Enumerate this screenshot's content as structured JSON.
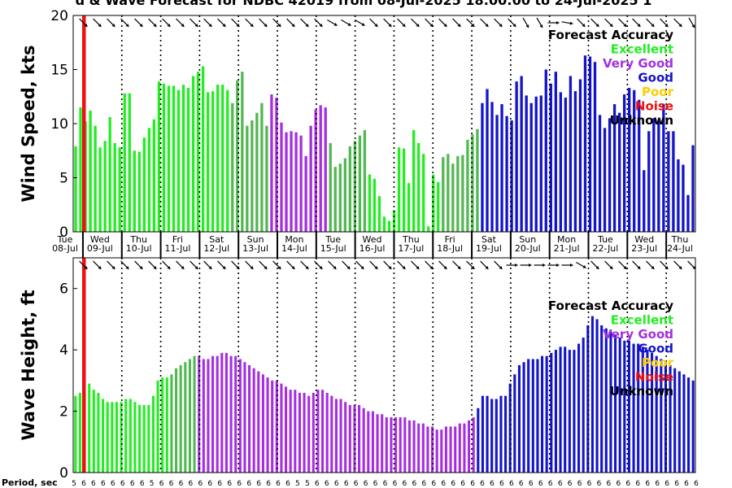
{
  "title": "d & Wave Forecast for NDBC 42019 from 08-Jul-2025 18:00:00 to 24-Jul-2025 1",
  "colors": {
    "Excellent": "#22ee22",
    "Mid": "#52b852",
    "Very Good": "#a52fe0",
    "Good": "#1414c8",
    "Poor": "#ffcc00",
    "Noise": "#ee1111",
    "Unknown": "#000000",
    "text": "#000000"
  },
  "legend": {
    "title": "Forecast Accuracy",
    "items": [
      {
        "label": "Excellent",
        "color": "#22ee22"
      },
      {
        "label": "Very Good",
        "color": "#a52fe0"
      },
      {
        "label": "Good",
        "color": "#1414c8"
      },
      {
        "label": "Poor",
        "color": "#ffcc00"
      },
      {
        "label": "Noise",
        "color": "#ee1111"
      },
      {
        "label": "Unknown",
        "color": "#000000"
      }
    ]
  },
  "day_labels": [
    {
      "day": "Tue",
      "date": "08-Jul"
    },
    {
      "day": "Wed",
      "date": "09-Jul"
    },
    {
      "day": "Thu",
      "date": "10-Jul"
    },
    {
      "day": "Fri",
      "date": "11-Jul"
    },
    {
      "day": "Sat",
      "date": "12-Jul"
    },
    {
      "day": "Sun",
      "date": "13-Jul"
    },
    {
      "day": "Mon",
      "date": "14-Jul"
    },
    {
      "day": "Tue",
      "date": "15-Jul"
    },
    {
      "day": "Wed",
      "date": "16-Jul"
    },
    {
      "day": "Thu",
      "date": "17-Jul"
    },
    {
      "day": "Fri",
      "date": "18-Jul"
    },
    {
      "day": "Sat",
      "date": "19-Jul"
    },
    {
      "day": "Sun",
      "date": "20-Jul"
    },
    {
      "day": "Mon",
      "date": "21-Jul"
    },
    {
      "day": "Tue",
      "date": "22-Jul"
    },
    {
      "day": "Wed",
      "date": "23-Jul"
    },
    {
      "day": "Thu",
      "date": "24-Jul"
    }
  ],
  "period_label": "Period, sec",
  "periods": [
    5,
    6,
    6,
    6,
    6,
    6,
    6,
    6,
    5,
    6,
    6,
    6,
    6,
    6,
    6,
    6,
    6,
    6,
    6,
    6,
    6,
    6,
    6,
    5,
    5,
    6,
    6,
    6,
    6,
    6,
    6,
    6,
    6,
    6,
    6,
    6,
    6,
    6,
    6,
    6,
    6,
    6,
    6,
    6,
    6,
    6,
    6,
    6,
    6,
    6,
    6,
    6,
    6,
    6,
    6,
    6,
    6,
    6,
    6,
    6,
    6,
    6,
    6,
    6,
    6
  ],
  "chart_data": [
    {
      "type": "bar",
      "name": "wind",
      "ylabel": "Wind Speed, kts",
      "ylim": [
        0,
        20
      ],
      "yticks": [
        0,
        5,
        10,
        15,
        20
      ],
      "grid": "vertical dotted day boundaries",
      "legend_position": "top-right",
      "values": [
        7.9,
        11.5,
        10.2,
        11.2,
        9.8,
        7.8,
        8.4,
        10.6,
        8.2,
        7.8,
        12.8,
        12.8,
        7.5,
        7.4,
        8.7,
        9.6,
        10.4,
        13.9,
        13.7,
        13.5,
        13.5,
        13.1,
        13.6,
        13.3,
        14.4,
        14.8,
        15.3,
        12.9,
        13.0,
        13.6,
        13.6,
        13.1,
        11.9,
        14.0,
        14.8,
        9.8,
        10.3,
        11.0,
        11.9,
        9.8,
        12.7,
        12.4,
        10.1,
        9.2,
        9.3,
        9.2,
        8.9,
        7.0,
        9.8,
        11.3,
        11.7,
        11.5,
        8.2,
        6.0,
        6.3,
        6.8,
        7.9,
        8.4,
        8.9,
        9.4,
        5.3,
        4.9,
        3.3,
        1.4,
        1.0,
        2.0,
        7.8,
        7.7,
        4.5,
        9.4,
        8.2,
        7.2,
        0.5,
        5.3,
        4.6,
        6.9,
        7.2,
        6.3,
        7.0,
        7.1,
        8.5,
        9.0,
        9.5,
        11.9,
        13.2,
        12.0,
        10.8,
        11.8,
        10.7,
        10.3,
        13.9,
        14.4,
        12.6,
        11.9,
        12.5,
        12.6,
        15.0,
        13.7,
        14.8,
        12.9,
        12.4,
        14.4,
        13.0,
        14.1,
        16.3,
        16.2,
        15.7,
        10.8,
        9.6,
        10.5,
        11.8,
        11.0,
        12.7,
        13.3,
        13.1,
        12.2,
        5.7,
        9.3,
        10.5,
        10.3,
        11.8,
        9.3,
        9.3,
        6.7,
        6.2,
        3.4,
        8.0
      ],
      "accuracy": [
        "E",
        "E",
        "E",
        "E",
        "E",
        "E",
        "E",
        "E",
        "E",
        "E",
        "E",
        "E",
        "E",
        "E",
        "E",
        "E",
        "E",
        "E",
        "E",
        "E",
        "E",
        "E",
        "E",
        "E",
        "E",
        "E",
        "E",
        "E",
        "E",
        "E",
        "E",
        "E",
        "M",
        "M",
        "M",
        "M",
        "M",
        "M",
        "M",
        "M",
        "V",
        "V",
        "V",
        "V",
        "V",
        "V",
        "V",
        "V",
        "V",
        "V",
        "V",
        "V",
        "M",
        "M",
        "M",
        "M",
        "M",
        "M",
        "M",
        "M",
        "E",
        "E",
        "E",
        "E",
        "E",
        "E",
        "E",
        "E",
        "E",
        "E",
        "E",
        "E",
        "E",
        "E",
        "E",
        "M",
        "M",
        "M",
        "M",
        "M",
        "M",
        "M",
        "M",
        "G",
        "G",
        "G",
        "G",
        "G",
        "G",
        "G",
        "G",
        "G",
        "G",
        "G",
        "G",
        "G",
        "G",
        "G",
        "G",
        "G",
        "G",
        "G",
        "G",
        "G",
        "G",
        "G",
        "G",
        "G",
        "G",
        "G",
        "G",
        "G",
        "G",
        "G",
        "G",
        "G",
        "G",
        "G",
        "G",
        "G",
        "G",
        "G",
        "G",
        "G",
        "G",
        "G",
        "G"
      ]
    },
    {
      "type": "bar",
      "name": "wave",
      "ylabel": "Wave Height, ft",
      "ylim": [
        0,
        7
      ],
      "yticks": [
        0,
        2,
        4,
        6
      ],
      "grid": "vertical dotted day boundaries",
      "legend_position": "top-right",
      "values": [
        2.5,
        2.6,
        2.6,
        2.9,
        2.7,
        2.6,
        2.4,
        2.3,
        2.3,
        2.3,
        2.3,
        2.4,
        2.4,
        2.3,
        2.2,
        2.2,
        2.2,
        2.5,
        3.0,
        3.1,
        3.1,
        3.2,
        3.4,
        3.5,
        3.6,
        3.7,
        3.8,
        3.8,
        3.7,
        3.7,
        3.8,
        3.8,
        3.9,
        3.9,
        3.8,
        3.8,
        3.7,
        3.6,
        3.5,
        3.4,
        3.3,
        3.2,
        3.1,
        3.0,
        3.0,
        2.9,
        2.8,
        2.7,
        2.7,
        2.6,
        2.6,
        2.5,
        2.6,
        2.7,
        2.7,
        2.6,
        2.5,
        2.4,
        2.4,
        2.3,
        2.2,
        2.2,
        2.2,
        2.1,
        2.0,
        2.0,
        1.9,
        1.9,
        1.8,
        1.8,
        1.8,
        1.8,
        1.8,
        1.7,
        1.7,
        1.6,
        1.6,
        1.5,
        1.5,
        1.4,
        1.4,
        1.5,
        1.5,
        1.5,
        1.6,
        1.6,
        1.7,
        1.8,
        2.1,
        2.5,
        2.5,
        2.4,
        2.4,
        2.5,
        2.5,
        2.9,
        3.2,
        3.5,
        3.6,
        3.7,
        3.7,
        3.7,
        3.8,
        3.8,
        3.9,
        4.0,
        4.1,
        4.1,
        4.0,
        4.0,
        4.2,
        4.4,
        4.8,
        5.1,
        5.0,
        4.8,
        4.7,
        4.6,
        4.5,
        4.4,
        4.3,
        4.3,
        4.2,
        4.2,
        4.1,
        4.0,
        3.9,
        3.8,
        3.7,
        3.6,
        3.5,
        3.4,
        3.3,
        3.2,
        3.1,
        3.0
      ],
      "accuracy": [
        "E",
        "E",
        "E",
        "E",
        "E",
        "E",
        "E",
        "E",
        "E",
        "E",
        "E",
        "E",
        "E",
        "E",
        "E",
        "E",
        "E",
        "E",
        "E",
        "E",
        "E",
        "M",
        "M",
        "M",
        "M",
        "M",
        "M",
        "V",
        "V",
        "V",
        "V",
        "V",
        "V",
        "V",
        "V",
        "V",
        "V",
        "V",
        "V",
        "V",
        "V",
        "V",
        "V",
        "V",
        "V",
        "V",
        "V",
        "V",
        "V",
        "V",
        "V",
        "V",
        "V",
        "V",
        "V",
        "V",
        "V",
        "V",
        "V",
        "V",
        "V",
        "V",
        "V",
        "V",
        "V",
        "V",
        "V",
        "V",
        "V",
        "V",
        "V",
        "V",
        "V",
        "V",
        "V",
        "V",
        "V",
        "V",
        "V",
        "V",
        "V",
        "V",
        "V",
        "V",
        "V",
        "V",
        "V",
        "V",
        "G",
        "G",
        "G",
        "G",
        "G",
        "G",
        "G",
        "G",
        "G",
        "G",
        "G",
        "G",
        "G",
        "G",
        "G",
        "G",
        "G",
        "G",
        "G",
        "G",
        "G",
        "G",
        "G",
        "G",
        "G",
        "G",
        "G",
        "G",
        "G",
        "G",
        "G",
        "G",
        "G",
        "G",
        "G",
        "G",
        "G",
        "G",
        "G",
        "G",
        "G",
        "G",
        "G",
        "G",
        "G",
        "G",
        "G",
        "G"
      ]
    }
  ],
  "wind_dir_deg": [
    315,
    315,
    315,
    315,
    315,
    315,
    315,
    315,
    315,
    315,
    315,
    315,
    315,
    315,
    315,
    315,
    315,
    315,
    300,
    300,
    300,
    315,
    315,
    315,
    315,
    315,
    315,
    315,
    315,
    315,
    315,
    315,
    330,
    330,
    270,
    280,
    315,
    315,
    315,
    315,
    315,
    315,
    315,
    315,
    330
  ],
  "wave_dir_deg": [
    315,
    315,
    315,
    315,
    315,
    315,
    315,
    315,
    315,
    315,
    315,
    315,
    315,
    315,
    315,
    315,
    315,
    315,
    315,
    315,
    315,
    315,
    315,
    315,
    315,
    315,
    315,
    315,
    315,
    315,
    315,
    270,
    270,
    270,
    270,
    270,
    300,
    315,
    315,
    315,
    315,
    315,
    315,
    315,
    315
  ]
}
